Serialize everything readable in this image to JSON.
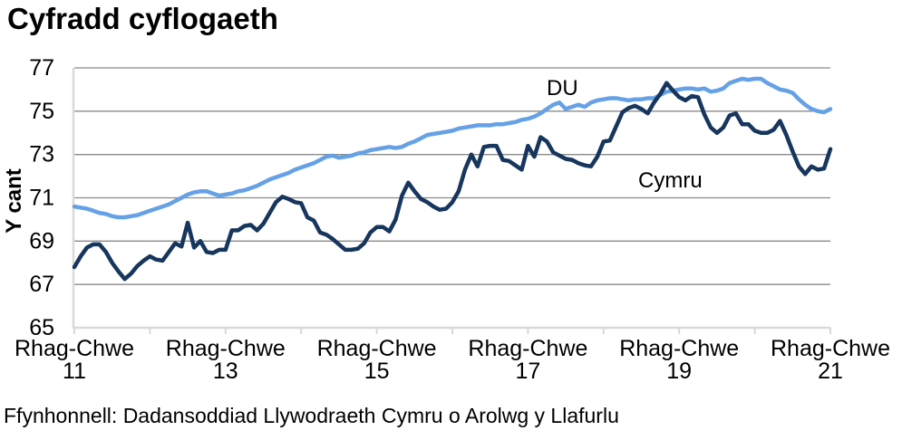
{
  "header": {
    "title": "Cyfradd cyflogaeth"
  },
  "footer": {
    "source": "Ffynhonnell: Dadansoddiad Llywodraeth Cymru o Arolwg y Llafurlu"
  },
  "chart_data": {
    "type": "line",
    "title": "Cyfradd cyflogaeth",
    "ylabel": "Y cant",
    "ylim": [
      65,
      77
    ],
    "y_ticks": [
      77,
      75,
      73,
      71,
      69,
      67,
      65
    ],
    "gridlines": [
      67,
      69,
      71,
      73,
      75,
      77
    ],
    "grid": "horizontal-only",
    "legend": "inline-labels-next-to-lines",
    "colors": {
      "gridline": "#8A8A8A",
      "axis": "#D9D9D9",
      "text": "#000000"
    },
    "x_axis": {
      "points": 121,
      "unit": "monthly rolling 3-month labour-market periods",
      "start_label": "Rhag-Chwe 11",
      "end_label": "Rhag-Chwe 21",
      "minor_tick_every_points": 12,
      "tick_labels": [
        {
          "line1": "Rhag-Chwe",
          "line2": "11",
          "month_index": 0
        },
        {
          "line1": "Rhag-Chwe",
          "line2": "13",
          "month_index": 24
        },
        {
          "line1": "Rhag-Chwe",
          "line2": "15",
          "month_index": 48
        },
        {
          "line1": "Rhag-Chwe",
          "line2": "17",
          "month_index": 72
        },
        {
          "line1": "Rhag-Chwe",
          "line2": "19",
          "month_index": 96
        },
        {
          "line1": "Rhag-Chwe",
          "line2": "21",
          "month_index": 120
        }
      ]
    },
    "series": [
      {
        "name": "DU",
        "color": "#66A1E6",
        "values": [
          70.6,
          70.55,
          70.5,
          70.4,
          70.3,
          70.25,
          70.15,
          70.1,
          70.1,
          70.15,
          70.2,
          70.3,
          70.4,
          70.5,
          70.6,
          70.7,
          70.85,
          71.0,
          71.15,
          71.25,
          71.3,
          71.3,
          71.2,
          71.1,
          71.15,
          71.2,
          71.3,
          71.35,
          71.45,
          71.55,
          71.7,
          71.85,
          71.95,
          72.05,
          72.15,
          72.3,
          72.4,
          72.5,
          72.6,
          72.75,
          72.9,
          72.95,
          72.85,
          72.9,
          72.95,
          73.05,
          73.1,
          73.2,
          73.25,
          73.3,
          73.35,
          73.3,
          73.35,
          73.5,
          73.6,
          73.75,
          73.9,
          73.95,
          74.0,
          74.05,
          74.1,
          74.2,
          74.25,
          74.3,
          74.35,
          74.35,
          74.35,
          74.4,
          74.4,
          74.45,
          74.5,
          74.6,
          74.65,
          74.75,
          74.9,
          75.1,
          75.3,
          75.4,
          75.1,
          75.2,
          75.3,
          75.2,
          75.4,
          75.5,
          75.55,
          75.6,
          75.6,
          75.55,
          75.5,
          75.55,
          75.55,
          75.6,
          75.6,
          75.75,
          75.9,
          75.95,
          76.0,
          76.05,
          76.05,
          76.0,
          76.05,
          75.9,
          75.95,
          76.05,
          76.3,
          76.4,
          76.5,
          76.45,
          76.5,
          76.5,
          76.3,
          76.15,
          76.0,
          75.95,
          75.85,
          75.55,
          75.3,
          75.1,
          75.0,
          74.95,
          75.1
        ]
      },
      {
        "name": "Cymru",
        "color": "#17365D",
        "values": [
          67.8,
          68.3,
          68.7,
          68.85,
          68.85,
          68.5,
          68.0,
          67.6,
          67.25,
          67.5,
          67.85,
          68.1,
          68.3,
          68.15,
          68.1,
          68.5,
          68.9,
          68.75,
          69.85,
          68.7,
          69.0,
          68.5,
          68.45,
          68.6,
          68.6,
          69.5,
          69.5,
          69.7,
          69.75,
          69.5,
          69.8,
          70.3,
          70.8,
          71.05,
          70.95,
          70.8,
          70.75,
          70.1,
          69.95,
          69.4,
          69.3,
          69.1,
          68.85,
          68.6,
          68.6,
          68.65,
          68.9,
          69.4,
          69.65,
          69.65,
          69.45,
          70.0,
          71.1,
          71.7,
          71.3,
          70.95,
          70.8,
          70.6,
          70.45,
          70.5,
          70.8,
          71.3,
          72.3,
          73.0,
          72.45,
          73.35,
          73.4,
          73.4,
          72.75,
          72.7,
          72.5,
          72.3,
          73.4,
          72.9,
          73.8,
          73.6,
          73.1,
          72.95,
          72.8,
          72.75,
          72.6,
          72.5,
          72.45,
          72.9,
          73.6,
          73.65,
          74.3,
          74.95,
          75.15,
          75.25,
          75.1,
          74.9,
          75.4,
          75.8,
          76.3,
          75.95,
          75.65,
          75.5,
          75.7,
          75.65,
          74.85,
          74.25,
          74.0,
          74.25,
          74.8,
          74.9,
          74.4,
          74.4,
          74.1,
          74.0,
          74.0,
          74.15,
          74.55,
          73.9,
          73.15,
          72.45,
          72.1,
          72.45,
          72.3,
          72.35,
          73.25
        ]
      }
    ]
  }
}
